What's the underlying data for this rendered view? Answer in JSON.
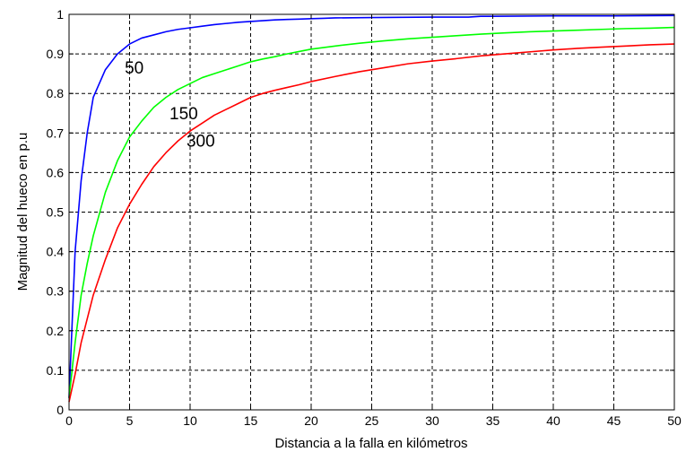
{
  "chart_data": {
    "type": "line",
    "title": "",
    "xlabel": "Distancia a la falla en kilómetros",
    "ylabel": "Magnitud del hueco en p.u",
    "xlim": [
      0,
      50
    ],
    "ylim": [
      0,
      1
    ],
    "xticks": [
      0,
      5,
      10,
      15,
      20,
      25,
      30,
      35,
      40,
      45,
      50
    ],
    "yticks": [
      0,
      0.1,
      0.2,
      0.3,
      0.4,
      0.5,
      0.6,
      0.7,
      0.8,
      0.9,
      1
    ],
    "xtick_labels": [
      "0",
      "5",
      "10",
      "15",
      "20",
      "25",
      "30",
      "35",
      "40",
      "45",
      "50"
    ],
    "ytick_labels": [
      "0",
      "0.1",
      "0.2",
      "0.3",
      "0.4",
      "0.5",
      "0.6",
      "0.7",
      "0.8",
      "0.9",
      "1"
    ],
    "grid": true,
    "line_style_grid": "dashed",
    "series": [
      {
        "label": "50",
        "color": "#0000ff",
        "x": [
          0,
          0.5,
          1,
          1.5,
          2,
          3,
          4,
          5,
          6,
          7,
          8,
          9,
          10,
          11,
          12,
          13,
          14,
          15,
          16,
          17,
          18,
          19,
          20,
          21,
          22,
          25,
          30,
          33,
          34,
          35,
          40,
          45,
          50
        ],
        "y": [
          0.03,
          0.4,
          0.58,
          0.7,
          0.79,
          0.86,
          0.9,
          0.925,
          0.94,
          0.948,
          0.956,
          0.962,
          0.966,
          0.97,
          0.974,
          0.977,
          0.98,
          0.982,
          0.984,
          0.986,
          0.987,
          0.988,
          0.989,
          0.99,
          0.991,
          0.992,
          0.993,
          0.993,
          0.995,
          0.995,
          0.996,
          0.996,
          0.997
        ]
      },
      {
        "label": "150",
        "color": "#00ff00",
        "x": [
          0,
          0.5,
          1,
          1.5,
          2,
          3,
          4,
          5,
          6,
          7,
          8,
          9,
          10,
          11,
          12,
          13,
          14,
          15,
          16,
          17,
          18,
          19,
          20,
          22,
          24,
          26,
          28,
          30,
          32,
          34,
          36,
          38,
          40,
          42,
          44,
          46,
          48,
          50
        ],
        "y": [
          0.03,
          0.17,
          0.29,
          0.37,
          0.44,
          0.55,
          0.63,
          0.69,
          0.73,
          0.765,
          0.79,
          0.81,
          0.825,
          0.84,
          0.85,
          0.86,
          0.87,
          0.88,
          0.887,
          0.893,
          0.9,
          0.906,
          0.912,
          0.92,
          0.927,
          0.933,
          0.938,
          0.942,
          0.946,
          0.95,
          0.953,
          0.956,
          0.958,
          0.96,
          0.962,
          0.964,
          0.965,
          0.967
        ]
      },
      {
        "label": "300",
        "color": "#ff0000",
        "x": [
          0,
          0.5,
          1,
          1.5,
          2,
          3,
          4,
          5,
          6,
          7,
          8,
          9,
          10,
          11,
          12,
          13,
          14,
          15,
          16,
          17,
          18,
          19,
          20,
          22,
          24,
          26,
          28,
          30,
          32,
          34,
          36,
          38,
          40,
          42,
          44,
          46,
          48,
          50
        ],
        "y": [
          0.02,
          0.09,
          0.17,
          0.23,
          0.29,
          0.38,
          0.46,
          0.52,
          0.57,
          0.615,
          0.65,
          0.68,
          0.705,
          0.725,
          0.745,
          0.76,
          0.775,
          0.79,
          0.8,
          0.808,
          0.815,
          0.822,
          0.83,
          0.843,
          0.855,
          0.865,
          0.875,
          0.882,
          0.888,
          0.895,
          0.9,
          0.905,
          0.91,
          0.914,
          0.917,
          0.92,
          0.923,
          0.925
        ]
      }
    ],
    "annotations": [
      {
        "text": "50",
        "x": 4.6,
        "y": 0.85
      },
      {
        "text": "150",
        "x": 8.3,
        "y": 0.735
      },
      {
        "text": "300",
        "x": 9.7,
        "y": 0.665
      }
    ]
  }
}
